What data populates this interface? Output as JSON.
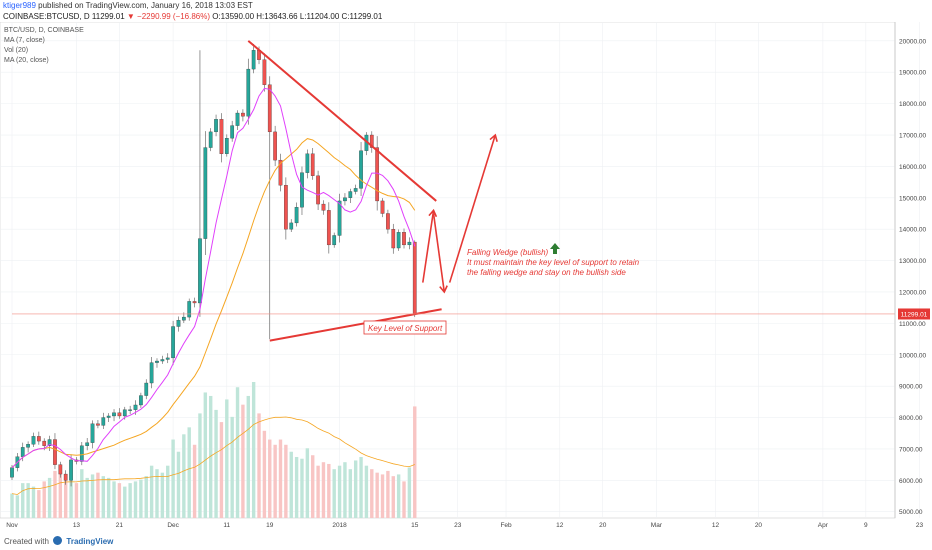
{
  "header": {
    "user": "ktiger989",
    "published": " published on TradingView.com, January 16, 2018 13:03 EST",
    "symbol_line_prefix": "COINBASE:BTCUSD, D  11299.01 ",
    "change": "▼ −2290.99 (−16.86%)",
    "ohlc": " O:13590.00 H:13643.66 L:11204.00 C:11299.01"
  },
  "footer": {
    "created": "Created with",
    "brand": "TradingView"
  },
  "colors": {
    "up": "#26a69a",
    "down": "#ef5350",
    "ma7": "#e040fb",
    "ma20": "#f5a623",
    "annotation": "#e53935",
    "price_badge": "#e53935"
  },
  "chart_data": {
    "type": "candlestick",
    "symbol_label": "BTC/USD, D, COINBASE",
    "indicators": [
      "MA (7, close)",
      "Vol (20)",
      "MA (20, close)"
    ],
    "ylim": [
      4800,
      20600
    ],
    "y_ticks": [
      5000,
      6000,
      7000,
      8000,
      9000,
      10000,
      11000,
      12000,
      13000,
      14000,
      15000,
      16000,
      17000,
      18000,
      19000,
      20000
    ],
    "y_tick_labels": [
      "5000.00",
      "6000.00",
      "7000.00",
      "8000.00",
      "9000.00",
      "10000.00",
      "11000.00",
      "12000.00",
      "13000.00",
      "14000.00",
      "15000.00",
      "16000.00",
      "17000.00",
      "18000.00",
      "19000.00",
      "20000.00"
    ],
    "x_ticks": [
      {
        "day": 0,
        "label": "Nov"
      },
      {
        "day": 12,
        "label": "13"
      },
      {
        "day": 20,
        "label": "21"
      },
      {
        "day": 30,
        "label": "Dec"
      },
      {
        "day": 40,
        "label": "11"
      },
      {
        "day": 48,
        "label": "19"
      },
      {
        "day": 61,
        "label": "2018"
      },
      {
        "day": 75,
        "label": "15"
      },
      {
        "day": 83,
        "label": "23"
      },
      {
        "day": 92,
        "label": "Feb"
      },
      {
        "day": 102,
        "label": "12"
      },
      {
        "day": 110,
        "label": "20"
      },
      {
        "day": 120,
        "label": "Mar"
      },
      {
        "day": 131,
        "label": "12"
      },
      {
        "day": 139,
        "label": "20"
      },
      {
        "day": 151,
        "label": "Apr"
      },
      {
        "day": 159,
        "label": "9"
      },
      {
        "day": 169,
        "label": "23"
      }
    ],
    "last_price": "11299.01",
    "last_price_value": 11299.01,
    "closes": [
      6400,
      6750,
      7050,
      7150,
      7400,
      7250,
      7100,
      7300,
      6500,
      6200,
      6000,
      6650,
      6600,
      7100,
      7200,
      7800,
      7750,
      8000,
      8050,
      8150,
      8050,
      8250,
      8250,
      8400,
      8700,
      9100,
      9750,
      9800,
      9850,
      9900,
      10900,
      11100,
      11200,
      11700,
      11650,
      13700,
      16600,
      17100,
      17500,
      16400,
      16900,
      17300,
      17700,
      17600,
      19100,
      19700,
      19400,
      18600,
      17100,
      16200,
      15400,
      14000,
      14200,
      14700,
      15800,
      16400,
      15700,
      14800,
      14600,
      13500,
      13800,
      14900,
      15000,
      15200,
      15300,
      16500,
      17000,
      16600,
      14900,
      14500,
      14000,
      13400,
      13900,
      13500,
      13590,
      11299
    ],
    "volumes": [
      140,
      130,
      200,
      200,
      180,
      160,
      210,
      230,
      270,
      300,
      250,
      220,
      200,
      280,
      230,
      250,
      260,
      240,
      230,
      210,
      200,
      180,
      200,
      210,
      220,
      240,
      300,
      280,
      260,
      300,
      450,
      380,
      480,
      520,
      420,
      600,
      720,
      700,
      620,
      550,
      680,
      580,
      750,
      650,
      700,
      780,
      600,
      500,
      450,
      420,
      450,
      420,
      380,
      350,
      340,
      400,
      360,
      300,
      320,
      310,
      280,
      300,
      320,
      280,
      330,
      350,
      300,
      280,
      260,
      250,
      270,
      240,
      250,
      210,
      290,
      640
    ],
    "ma7_tail_start": 58,
    "ma20_tail_start": 60,
    "annotations": {
      "title": "Falling Wedge (bullish)",
      "line1": "It must maintain the key level of support to retain",
      "line2": "the falling wedge and stay on the bullish side",
      "support_label": "Key Level of Support"
    }
  }
}
